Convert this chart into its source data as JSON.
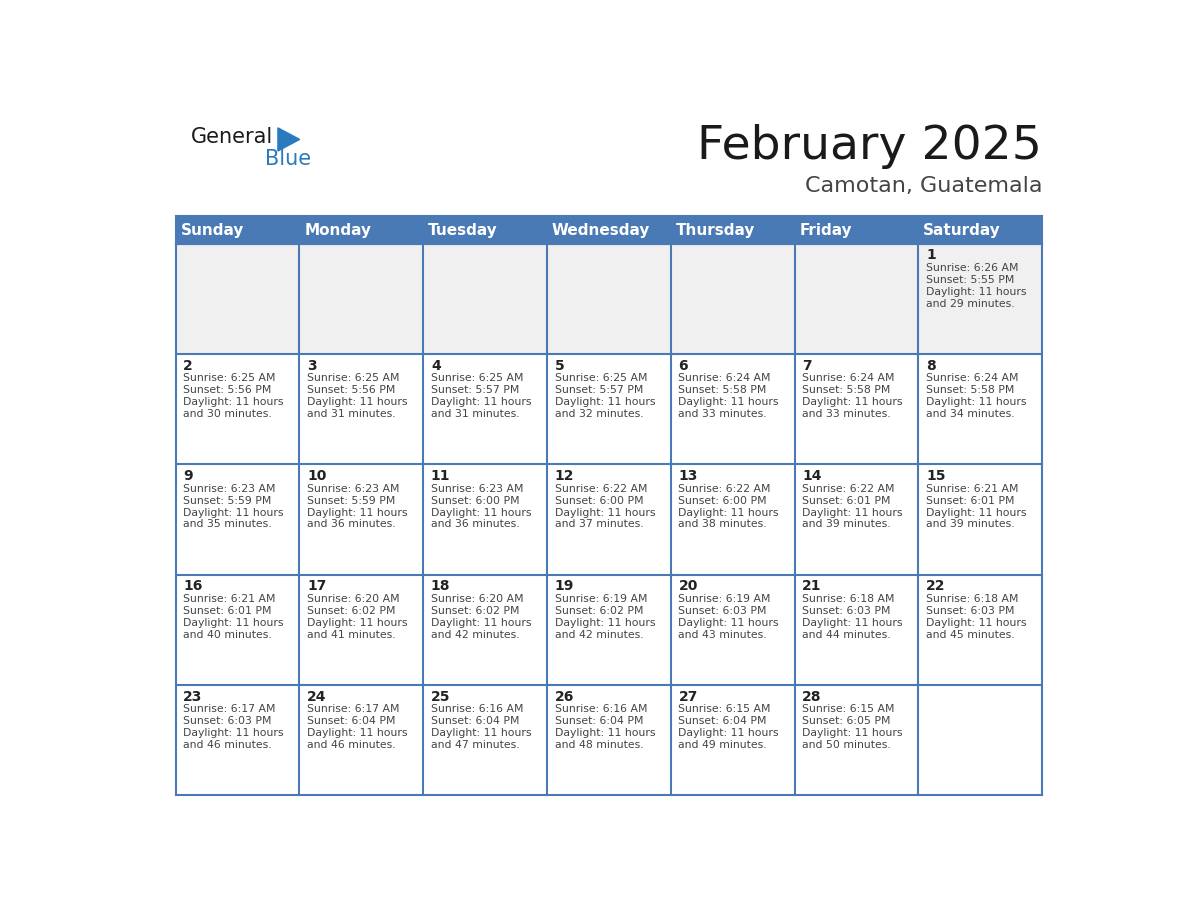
{
  "title": "February 2025",
  "subtitle": "Camotan, Guatemala",
  "days_of_week": [
    "Sunday",
    "Monday",
    "Tuesday",
    "Wednesday",
    "Thursday",
    "Friday",
    "Saturday"
  ],
  "header_bg": "#4a7ab5",
  "header_text": "#ffffff",
  "cell_bg": "#ffffff",
  "first_row_bg": "#f0f0f0",
  "cell_text_color": "#444444",
  "day_num_color": "#222222",
  "border_color": "#4a7ab5",
  "row_line_color": "#4a7ab5",
  "title_color": "#1a1a1a",
  "subtitle_color": "#444444",
  "logo_general_color": "#1a1a1a",
  "logo_blue_color": "#2a7abf",
  "weeks": [
    [
      {
        "day": null,
        "sunrise": null,
        "sunset": null,
        "daylight": null
      },
      {
        "day": null,
        "sunrise": null,
        "sunset": null,
        "daylight": null
      },
      {
        "day": null,
        "sunrise": null,
        "sunset": null,
        "daylight": null
      },
      {
        "day": null,
        "sunrise": null,
        "sunset": null,
        "daylight": null
      },
      {
        "day": null,
        "sunrise": null,
        "sunset": null,
        "daylight": null
      },
      {
        "day": null,
        "sunrise": null,
        "sunset": null,
        "daylight": null
      },
      {
        "day": 1,
        "sunrise": "6:26 AM",
        "sunset": "5:55 PM",
        "daylight": "11 hours and 29 minutes."
      }
    ],
    [
      {
        "day": 2,
        "sunrise": "6:25 AM",
        "sunset": "5:56 PM",
        "daylight": "11 hours and 30 minutes."
      },
      {
        "day": 3,
        "sunrise": "6:25 AM",
        "sunset": "5:56 PM",
        "daylight": "11 hours and 31 minutes."
      },
      {
        "day": 4,
        "sunrise": "6:25 AM",
        "sunset": "5:57 PM",
        "daylight": "11 hours and 31 minutes."
      },
      {
        "day": 5,
        "sunrise": "6:25 AM",
        "sunset": "5:57 PM",
        "daylight": "11 hours and 32 minutes."
      },
      {
        "day": 6,
        "sunrise": "6:24 AM",
        "sunset": "5:58 PM",
        "daylight": "11 hours and 33 minutes."
      },
      {
        "day": 7,
        "sunrise": "6:24 AM",
        "sunset": "5:58 PM",
        "daylight": "11 hours and 33 minutes."
      },
      {
        "day": 8,
        "sunrise": "6:24 AM",
        "sunset": "5:58 PM",
        "daylight": "11 hours and 34 minutes."
      }
    ],
    [
      {
        "day": 9,
        "sunrise": "6:23 AM",
        "sunset": "5:59 PM",
        "daylight": "11 hours and 35 minutes."
      },
      {
        "day": 10,
        "sunrise": "6:23 AM",
        "sunset": "5:59 PM",
        "daylight": "11 hours and 36 minutes."
      },
      {
        "day": 11,
        "sunrise": "6:23 AM",
        "sunset": "6:00 PM",
        "daylight": "11 hours and 36 minutes."
      },
      {
        "day": 12,
        "sunrise": "6:22 AM",
        "sunset": "6:00 PM",
        "daylight": "11 hours and 37 minutes."
      },
      {
        "day": 13,
        "sunrise": "6:22 AM",
        "sunset": "6:00 PM",
        "daylight": "11 hours and 38 minutes."
      },
      {
        "day": 14,
        "sunrise": "6:22 AM",
        "sunset": "6:01 PM",
        "daylight": "11 hours and 39 minutes."
      },
      {
        "day": 15,
        "sunrise": "6:21 AM",
        "sunset": "6:01 PM",
        "daylight": "11 hours and 39 minutes."
      }
    ],
    [
      {
        "day": 16,
        "sunrise": "6:21 AM",
        "sunset": "6:01 PM",
        "daylight": "11 hours and 40 minutes."
      },
      {
        "day": 17,
        "sunrise": "6:20 AM",
        "sunset": "6:02 PM",
        "daylight": "11 hours and 41 minutes."
      },
      {
        "day": 18,
        "sunrise": "6:20 AM",
        "sunset": "6:02 PM",
        "daylight": "11 hours and 42 minutes."
      },
      {
        "day": 19,
        "sunrise": "6:19 AM",
        "sunset": "6:02 PM",
        "daylight": "11 hours and 42 minutes."
      },
      {
        "day": 20,
        "sunrise": "6:19 AM",
        "sunset": "6:03 PM",
        "daylight": "11 hours and 43 minutes."
      },
      {
        "day": 21,
        "sunrise": "6:18 AM",
        "sunset": "6:03 PM",
        "daylight": "11 hours and 44 minutes."
      },
      {
        "day": 22,
        "sunrise": "6:18 AM",
        "sunset": "6:03 PM",
        "daylight": "11 hours and 45 minutes."
      }
    ],
    [
      {
        "day": 23,
        "sunrise": "6:17 AM",
        "sunset": "6:03 PM",
        "daylight": "11 hours and 46 minutes."
      },
      {
        "day": 24,
        "sunrise": "6:17 AM",
        "sunset": "6:04 PM",
        "daylight": "11 hours and 46 minutes."
      },
      {
        "day": 25,
        "sunrise": "6:16 AM",
        "sunset": "6:04 PM",
        "daylight": "11 hours and 47 minutes."
      },
      {
        "day": 26,
        "sunrise": "6:16 AM",
        "sunset": "6:04 PM",
        "daylight": "11 hours and 48 minutes."
      },
      {
        "day": 27,
        "sunrise": "6:15 AM",
        "sunset": "6:04 PM",
        "daylight": "11 hours and 49 minutes."
      },
      {
        "day": 28,
        "sunrise": "6:15 AM",
        "sunset": "6:05 PM",
        "daylight": "11 hours and 50 minutes."
      },
      {
        "day": null,
        "sunrise": null,
        "sunset": null,
        "daylight": null
      }
    ]
  ]
}
